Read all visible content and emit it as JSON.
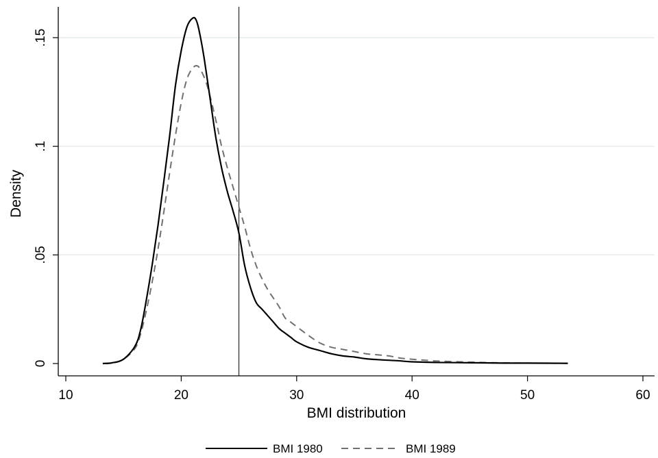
{
  "chart_data": {
    "type": "line",
    "title": "",
    "xlabel": "BMI distribution",
    "ylabel": "Density",
    "xlim": [
      10,
      60
    ],
    "ylim": [
      0,
      0.165
    ],
    "xticks": [
      10,
      20,
      30,
      40,
      50,
      60
    ],
    "xtick_labels": [
      "10",
      "20",
      "30",
      "40",
      "50",
      "60"
    ],
    "yticks": [
      0,
      0.05,
      0.1,
      0.15
    ],
    "ytick_labels": [
      "0",
      ".05",
      ".1",
      ".15"
    ],
    "grid": "horizontal",
    "reference_line_x": 25,
    "legend_position": "bottom",
    "series": [
      {
        "name": "BMI 1980",
        "style": "solid",
        "color": "#000000",
        "x": [
          13.2,
          14,
          15,
          16,
          16.5,
          17,
          17.5,
          18,
          18.5,
          19,
          19.5,
          20,
          20.5,
          21,
          21.3,
          21.6,
          22,
          22.5,
          23,
          23.5,
          24,
          24.5,
          25,
          25.5,
          26,
          26.5,
          27,
          27.5,
          28,
          28.5,
          29,
          29.5,
          30,
          31,
          32,
          33,
          34,
          35,
          36,
          37,
          38,
          39,
          40,
          42,
          44,
          46,
          48,
          50,
          53.5
        ],
        "y": [
          0,
          0.0003,
          0.002,
          0.008,
          0.016,
          0.03,
          0.046,
          0.064,
          0.084,
          0.105,
          0.128,
          0.144,
          0.155,
          0.159,
          0.158,
          0.152,
          0.14,
          0.122,
          0.104,
          0.09,
          0.079,
          0.07,
          0.06,
          0.045,
          0.035,
          0.028,
          0.025,
          0.022,
          0.019,
          0.016,
          0.014,
          0.012,
          0.01,
          0.0075,
          0.006,
          0.0045,
          0.0035,
          0.003,
          0.0022,
          0.0018,
          0.0015,
          0.0012,
          0.0008,
          0.0005,
          0.0004,
          0.0003,
          0.0002,
          0.0002,
          0.0001
        ]
      },
      {
        "name": "BMI 1989",
        "style": "dashed",
        "color": "#707070",
        "x": [
          13.2,
          14,
          15,
          16,
          16.5,
          17,
          17.5,
          18,
          18.5,
          19,
          19.5,
          20,
          20.5,
          21,
          21.4,
          21.8,
          22.3,
          23,
          23.5,
          24,
          24.5,
          25,
          25.5,
          26,
          26.5,
          27,
          27.5,
          28,
          28.5,
          29,
          29.5,
          30,
          31,
          32,
          33,
          34,
          35,
          36,
          37,
          38,
          39,
          40,
          42,
          44,
          46,
          48,
          50,
          53.5
        ],
        "y": [
          0,
          0.0003,
          0.002,
          0.007,
          0.014,
          0.025,
          0.038,
          0.053,
          0.07,
          0.088,
          0.105,
          0.12,
          0.131,
          0.136,
          0.137,
          0.134,
          0.127,
          0.112,
          0.1,
          0.09,
          0.081,
          0.072,
          0.063,
          0.053,
          0.045,
          0.039,
          0.034,
          0.03,
          0.026,
          0.021,
          0.019,
          0.017,
          0.013,
          0.0095,
          0.0075,
          0.0065,
          0.0055,
          0.0045,
          0.004,
          0.0035,
          0.0025,
          0.002,
          0.0012,
          0.0008,
          0.0005,
          0.0003,
          0.0002,
          0.0001
        ]
      }
    ]
  }
}
